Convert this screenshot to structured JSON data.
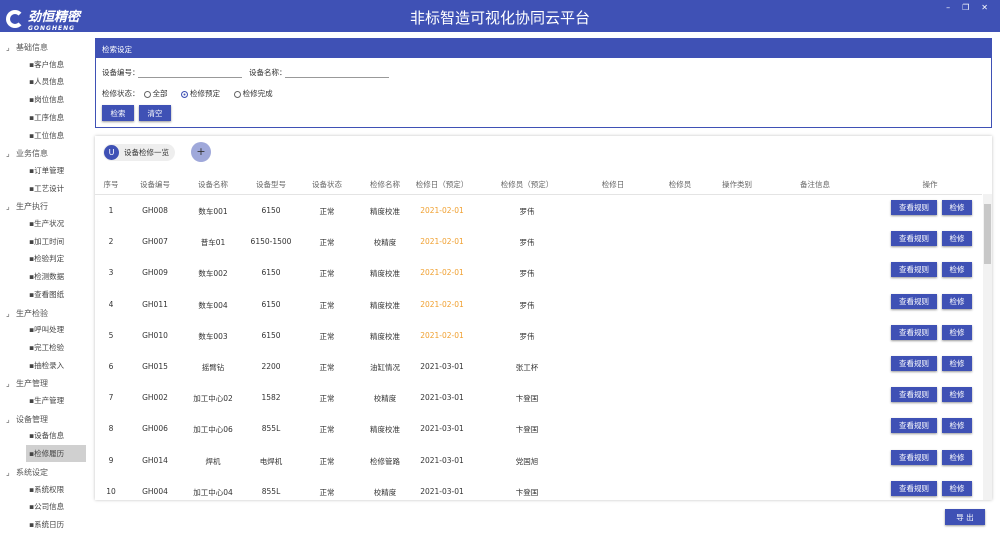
{
  "header": {
    "logo_text": "劲恒精密",
    "logo_sub": "GONGHENG",
    "title": "非标智造可视化协同云平台",
    "win": [
      "–",
      "❐",
      "✕"
    ]
  },
  "sidebar": [
    {
      "label": "基础信息",
      "items": [
        "客户信息",
        "人员信息",
        "岗位信息",
        "工序信息",
        "工位信息"
      ]
    },
    {
      "label": "业务信息",
      "items": [
        "订单管理",
        "工艺设计"
      ]
    },
    {
      "label": "生产执行",
      "items": [
        "生产状况",
        "加工时间",
        "检验判定",
        "检测数据",
        "查看图纸"
      ]
    },
    {
      "label": "生产检验",
      "items": [
        "呼叫处理",
        "完工检验",
        "抽检录入"
      ]
    },
    {
      "label": "生产管理",
      "items": [
        "生产管理"
      ]
    },
    {
      "label": "设备管理",
      "items": [
        "设备信息",
        "检修履历"
      ]
    },
    {
      "label": "系统设定",
      "items": [
        "系统权限",
        "公司信息",
        "系统日历"
      ]
    }
  ],
  "sidebar_selected": "检修履历",
  "search": {
    "title": "检索设定",
    "device_no_label": "设备编号：",
    "device_no_value": "",
    "device_name_label": "设备名称：",
    "device_name_value": "",
    "status_label": "检修状态：",
    "options": [
      "全部",
      "检修预定",
      "检修完成"
    ],
    "selected": "检修预定",
    "search_btn": "检索",
    "clear_btn": "清空"
  },
  "list": {
    "chip_letter": "U",
    "chip_label": "设备检修一览",
    "add": "+",
    "columns": [
      "序号",
      "设备编号",
      "设备名称",
      "设备型号",
      "设备状态",
      "检修名称",
      "检修日（预定）",
      "检修员（预定）",
      "检修日",
      "检修员",
      "操作类别",
      "备注信息",
      "操作"
    ],
    "rows": [
      [
        "1",
        "GH008",
        "数车001",
        "6150",
        "正常",
        "精度校准",
        "2021-02-01",
        "罗伟"
      ],
      [
        "2",
        "GH007",
        "普车01",
        "6150-1500",
        "正常",
        "校精度",
        "2021-02-01",
        "罗伟"
      ],
      [
        "3",
        "GH009",
        "数车002",
        "6150",
        "正常",
        "精度校准",
        "2021-02-01",
        "罗伟"
      ],
      [
        "4",
        "GH011",
        "数车004",
        "6150",
        "正常",
        "精度校准",
        "2021-02-01",
        "罗伟"
      ],
      [
        "5",
        "GH010",
        "数车003",
        "6150",
        "正常",
        "精度校准",
        "2021-02-01",
        "罗伟"
      ],
      [
        "6",
        "GH015",
        "摇臂钻",
        "2200",
        "正常",
        "油缸情况",
        "2021-03-01",
        "张工杯"
      ],
      [
        "7",
        "GH002",
        "加工中心02",
        "1582",
        "正常",
        "校精度",
        "2021-03-01",
        "卞登国"
      ],
      [
        "8",
        "GH006",
        "加工中心06",
        "855L",
        "正常",
        "精度校准",
        "2021-03-01",
        "卞登国"
      ],
      [
        "9",
        "GH014",
        "焊机",
        "电焊机",
        "正常",
        "检修管路",
        "2021-03-01",
        "党国旭"
      ],
      [
        "10",
        "GH004",
        "加工中心04",
        "855L",
        "正常",
        "校精度",
        "2021-03-01",
        "卞登国"
      ]
    ],
    "rule_btn": "查看规则",
    "repair_btn": "检修"
  },
  "export_btn": "导 出",
  "colors": {
    "primary": "#3f51b5",
    "planned_date": "#f0a030"
  }
}
